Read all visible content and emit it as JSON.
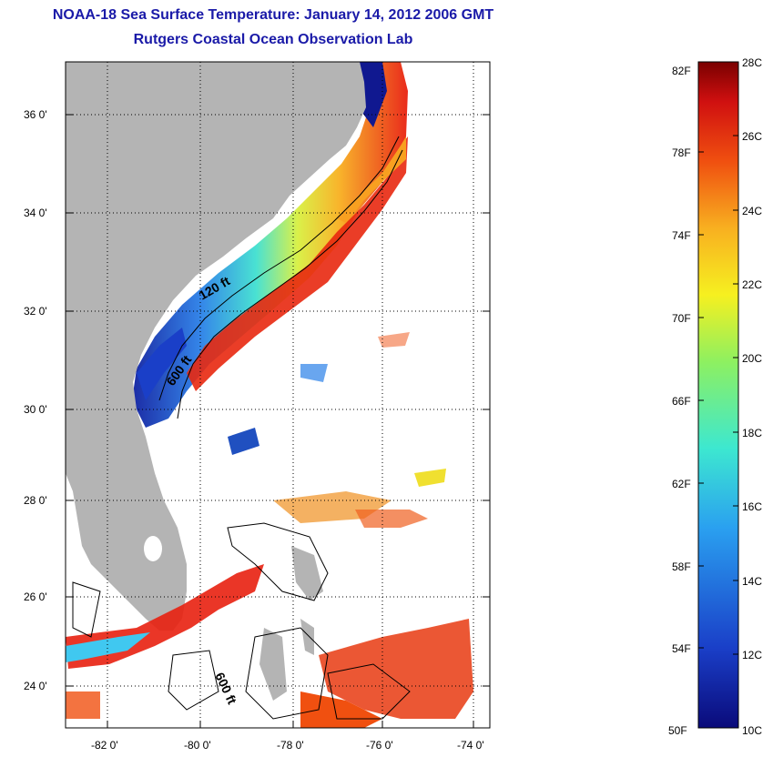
{
  "title": "NOAA-18 Sea Surface Temperature:  January 14, 2012 2006 GMT",
  "subtitle": "Rutgers Coastal Ocean Observation Lab",
  "map": {
    "lon_ticks": [
      "-82 0'",
      "-80 0'",
      "-78 0'",
      "-76 0'",
      "-74 0'"
    ],
    "lat_ticks": [
      "36 0'",
      "34 0'",
      "32 0'",
      "30 0'",
      "28 0'",
      "26 0'",
      "24 0'"
    ],
    "contour_labels": [
      "120 ft",
      "600 ft",
      "600 ft"
    ],
    "colors": {
      "land": "#b4b4b4",
      "ocean_no_data": "#ffffff",
      "grid": "#000000"
    }
  },
  "colorbar": {
    "fahrenheit": [
      "82F",
      "78F",
      "74F",
      "70F",
      "66F",
      "62F",
      "58F",
      "54F",
      "50F"
    ],
    "celsius": [
      "28C",
      "26C",
      "24C",
      "22C",
      "20C",
      "18C",
      "16C",
      "14C",
      "12C",
      "10C"
    ],
    "colors": [
      "#0a0a7a",
      "#1a3fc8",
      "#2aa0f0",
      "#3de8d0",
      "#8ef060",
      "#f6f020",
      "#f8b020",
      "#f05010",
      "#d01010",
      "#7a0000"
    ]
  }
}
